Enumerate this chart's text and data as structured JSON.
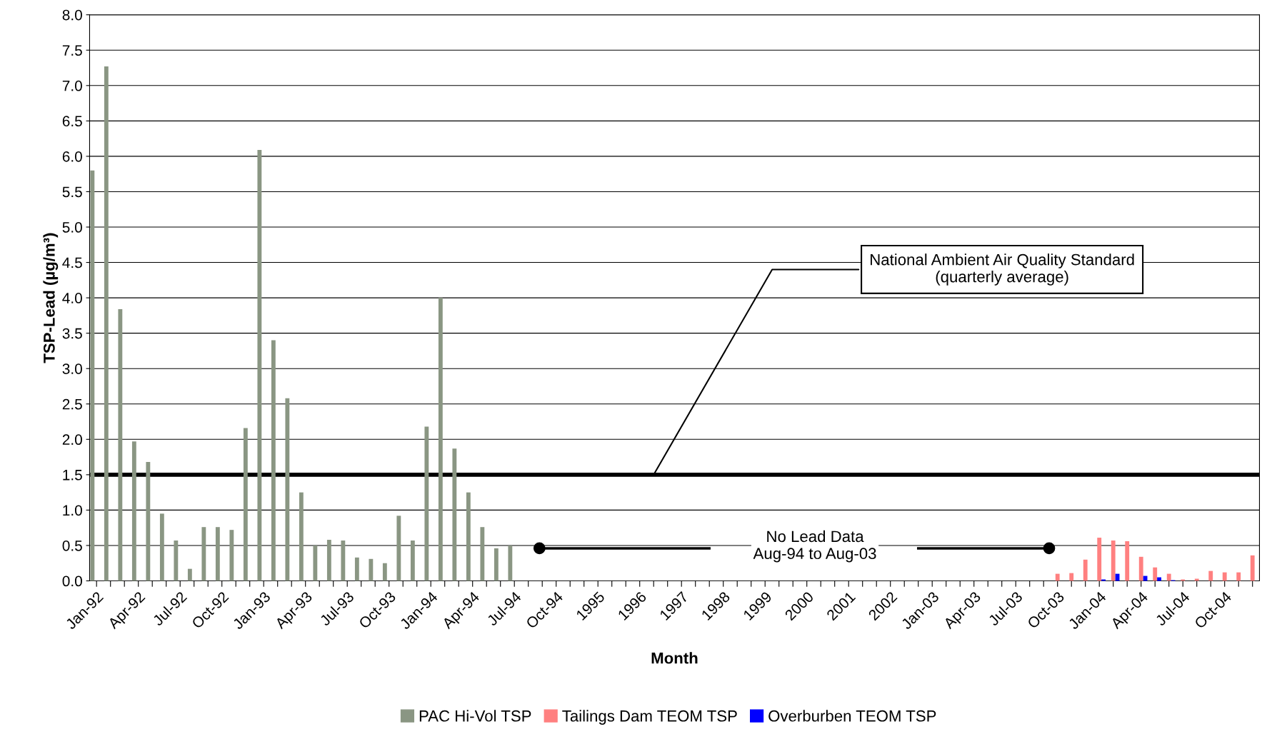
{
  "chart_data": {
    "type": "bar",
    "categories": [
      "Jan-92",
      null,
      null,
      "Apr-92",
      null,
      null,
      "Jul-92",
      null,
      null,
      "Oct-92",
      null,
      null,
      "Jan-93",
      null,
      null,
      "Apr-93",
      null,
      null,
      "Jul-93",
      null,
      null,
      "Oct-93",
      null,
      null,
      "Jan-94",
      null,
      null,
      "Apr-94",
      null,
      null,
      "Jul-94",
      null,
      null,
      "Oct-94",
      null,
      null,
      "1995",
      null,
      null,
      "1996",
      null,
      null,
      "1997",
      null,
      null,
      "1998",
      null,
      null,
      "1999",
      null,
      null,
      "2000",
      null,
      null,
      "2001",
      null,
      null,
      "2002",
      null,
      null,
      "Jan-03",
      null,
      null,
      "Apr-03",
      null,
      null,
      "Jul-03",
      null,
      null,
      "Oct-03",
      null,
      null,
      "Jan-04",
      null,
      null,
      "Apr-04",
      null,
      null,
      "Jul-04",
      null,
      null,
      "Oct-04",
      null,
      null
    ],
    "series": [
      {
        "name": "PAC Hi-Vol TSP",
        "color": "#8a9683",
        "values": [
          5.8,
          7.27,
          3.84,
          1.97,
          1.68,
          0.95,
          0.57,
          0.17,
          0.76,
          0.76,
          0.72,
          2.16,
          6.09,
          3.4,
          2.58,
          1.25,
          0.5,
          0.58,
          0.57,
          0.33,
          0.31,
          0.25,
          0.92,
          0.57,
          2.18,
          4.0,
          1.87,
          1.25,
          0.76,
          0.46,
          0.5,
          null,
          null,
          null,
          null,
          null,
          null,
          null,
          null,
          null,
          null,
          null,
          null,
          null,
          null,
          null,
          null,
          null,
          null,
          null,
          null,
          null,
          null,
          null,
          null,
          null,
          null,
          null,
          null,
          null,
          null,
          null,
          null,
          null,
          null,
          null,
          null,
          null,
          null,
          null,
          null,
          null,
          null,
          null,
          null,
          null,
          null,
          null,
          null,
          null,
          null,
          null,
          null,
          null
        ]
      },
      {
        "name": "Tailings Dam TEOM TSP",
        "color": "#ff8080",
        "values": [
          null,
          null,
          null,
          null,
          null,
          null,
          null,
          null,
          null,
          null,
          null,
          null,
          null,
          null,
          null,
          null,
          null,
          null,
          null,
          null,
          null,
          null,
          null,
          null,
          null,
          null,
          null,
          null,
          null,
          null,
          null,
          null,
          null,
          null,
          null,
          null,
          null,
          null,
          null,
          null,
          null,
          null,
          null,
          null,
          null,
          null,
          null,
          null,
          null,
          null,
          null,
          null,
          null,
          null,
          null,
          null,
          null,
          null,
          null,
          null,
          null,
          null,
          null,
          null,
          null,
          null,
          null,
          null,
          null,
          0.1,
          0.11,
          0.3,
          0.61,
          0.57,
          0.56,
          0.34,
          0.19,
          0.1,
          0.02,
          0.03,
          0.14,
          0.12,
          0.12,
          0.36
        ]
      },
      {
        "name": "Overburben TEOM TSP",
        "color": "#0000ff",
        "values": [
          null,
          null,
          null,
          null,
          null,
          null,
          null,
          null,
          null,
          null,
          null,
          null,
          null,
          null,
          null,
          null,
          null,
          null,
          null,
          null,
          null,
          null,
          null,
          null,
          null,
          null,
          null,
          null,
          null,
          null,
          null,
          null,
          null,
          null,
          null,
          null,
          null,
          null,
          null,
          null,
          null,
          null,
          null,
          null,
          null,
          null,
          null,
          null,
          null,
          null,
          null,
          null,
          null,
          null,
          null,
          null,
          null,
          null,
          null,
          null,
          null,
          null,
          null,
          null,
          null,
          null,
          null,
          null,
          null,
          null,
          null,
          null,
          0.02,
          0.1,
          null,
          0.07,
          0.05,
          0.01,
          null,
          null,
          null,
          null,
          null,
          null
        ]
      }
    ],
    "xlabel": "Month",
    "ylabel": "TSP-Lead (µg/m³)",
    "ylim": [
      0,
      8
    ],
    "yticks": [
      {
        "value": 0,
        "label": "0.0"
      },
      {
        "value": 0.5,
        "label": "0.5"
      },
      {
        "value": 1,
        "label": "1.0"
      },
      {
        "value": 1.5,
        "label": "1.5"
      },
      {
        "value": 2,
        "label": "2.0"
      },
      {
        "value": 2.5,
        "label": "2.5"
      },
      {
        "value": 3,
        "label": "3.0"
      },
      {
        "value": 3.5,
        "label": "3.5"
      },
      {
        "value": 4,
        "label": "4.0"
      },
      {
        "value": 4.5,
        "label": "4.5"
      },
      {
        "value": 5,
        "label": "5.0"
      },
      {
        "value": 5.5,
        "label": "5.5"
      },
      {
        "value": 6,
        "label": "6.0"
      },
      {
        "value": 6.5,
        "label": "6.5"
      },
      {
        "value": 7,
        "label": "7.0"
      },
      {
        "value": 7.5,
        "label": "7.5"
      },
      {
        "value": 8,
        "label": "8.0"
      }
    ],
    "ref_lines": [
      {
        "axis": "y",
        "value": 1.5,
        "label": "National Ambient Air Quality Standard\n(quarterly average)",
        "color": "#000000"
      }
    ],
    "annotations": [
      "No Lead Data\nAug-94 to Aug-03"
    ],
    "grid": "y",
    "legend": "bottom"
  }
}
